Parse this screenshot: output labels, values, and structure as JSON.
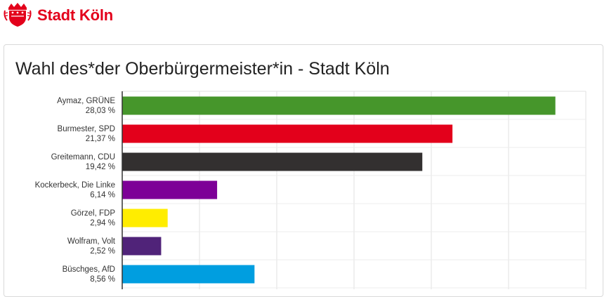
{
  "header": {
    "brand": "Stadt Köln",
    "logo_icon": "koeln-coat-of-arms-icon",
    "brand_color": "#e3001b"
  },
  "panel": {
    "title": "Wahl des*der Oberbürgermeister*in - Stadt Köln"
  },
  "chart_data": {
    "type": "bar",
    "orientation": "horizontal",
    "title": "Wahl des*der Oberbürgermeister*in - Stadt Köln",
    "xlim": [
      0,
      30
    ],
    "grid": true,
    "categories": [
      "Aymaz, GRÜNE",
      "Burmester, SPD",
      "Greitemann, CDU",
      "Kockerbeck, Die Linke",
      "Görzel, FDP",
      "Wolfram, Volt",
      "Büschges, AfD"
    ],
    "values": [
      28.03,
      21.37,
      19.42,
      6.14,
      2.94,
      2.52,
      8.56
    ],
    "value_labels": [
      "28,03 %",
      "21,37 %",
      "19,42 %",
      "6,14 %",
      "2,94 %",
      "2,52 %",
      "8,56 %"
    ],
    "colors": [
      "#46962b",
      "#e3001b",
      "#333030",
      "#7d0097",
      "#ffed00",
      "#502379",
      "#009ee0"
    ]
  }
}
